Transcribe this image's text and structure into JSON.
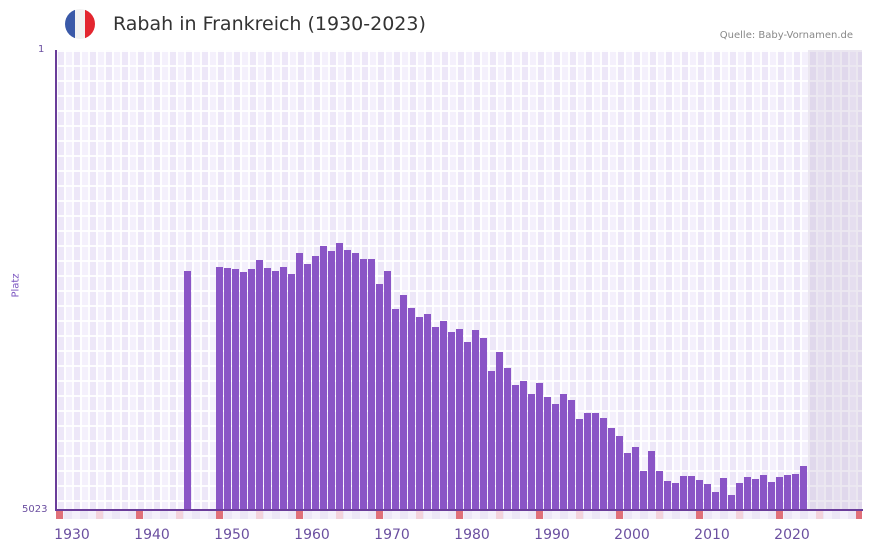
{
  "header": {
    "title": "Rabah in Frankreich (1930-2023)",
    "source": "Quelle: Baby-Vornamen.de",
    "flag_colors": [
      "#3a59a8",
      "#f2f2f2",
      "#e3262f"
    ]
  },
  "axis": {
    "y_top_label": "1",
    "y_bottom_label": "5023",
    "y_title": "Platz",
    "x_ticks": [
      "1930",
      "1940",
      "1950",
      "1960",
      "1970",
      "1980",
      "1990",
      "2000",
      "2010",
      "2020"
    ]
  },
  "colors": {
    "bar": "#8a55c6",
    "axis": "#6a3d9a",
    "decade_marker": "#e0707a",
    "half_decade_marker": "#f3d3dc"
  },
  "chart_data": {
    "type": "bar",
    "title": "Rabah in Frankreich (1930-2023)",
    "xlabel": "",
    "ylabel": "Platz",
    "ylim": [
      5023,
      1
    ],
    "y_inverted": true,
    "grid": true,
    "x_range": [
      1930,
      2029
    ],
    "note": "Values are estimated ranks (lower = more popular); bars grow upward from rank 5023.",
    "x": [
      1946,
      1950,
      1951,
      1952,
      1953,
      1954,
      1955,
      1956,
      1957,
      1958,
      1959,
      1960,
      1961,
      1962,
      1963,
      1964,
      1965,
      1966,
      1967,
      1968,
      1969,
      1970,
      1971,
      1972,
      1973,
      1974,
      1975,
      1976,
      1977,
      1978,
      1979,
      1980,
      1981,
      1982,
      1983,
      1984,
      1985,
      1986,
      1987,
      1988,
      1989,
      1990,
      1991,
      1992,
      1993,
      1994,
      1995,
      1996,
      1997,
      1998,
      1999,
      2000,
      2001,
      2002,
      2003,
      2004,
      2005,
      2006,
      2007,
      2008,
      2009,
      2010,
      2011,
      2012,
      2013,
      2014,
      2015,
      2016,
      2017,
      2018,
      2019,
      2020,
      2021,
      2022,
      2023
    ],
    "values": [
      2414,
      2371,
      2382,
      2393,
      2425,
      2393,
      2294,
      2382,
      2414,
      2371,
      2447,
      2218,
      2338,
      2251,
      2141,
      2196,
      2109,
      2185,
      2218,
      2283,
      2283,
      2556,
      2414,
      2829,
      2676,
      2818,
      2916,
      2884,
      3025,
      2960,
      3080,
      3047,
      3189,
      3058,
      3145,
      3505,
      3298,
      3472,
      3658,
      3614,
      3756,
      3636,
      3789,
      3865,
      3756,
      3822,
      4029,
      3964,
      3964,
      4018,
      4127,
      4215,
      4400,
      4335,
      4597,
      4378,
      4597,
      4706,
      4728,
      4651,
      4651,
      4695,
      4739,
      4826,
      4673,
      4859,
      4728,
      4662,
      4684,
      4640,
      4717,
      4662,
      4640,
      4630,
      4542
    ]
  }
}
